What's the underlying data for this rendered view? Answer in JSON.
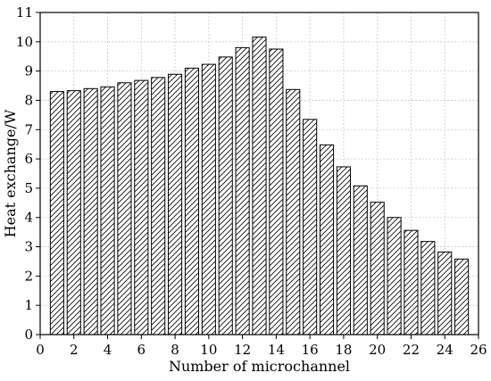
{
  "chart_data": {
    "type": "bar",
    "title": "",
    "xlabel": "Number of microchannel",
    "ylabel": "Heat exchange/W",
    "xlim": [
      0,
      26
    ],
    "ylim": [
      0,
      11
    ],
    "x_ticks": [
      "0",
      "2",
      "4",
      "6",
      "8",
      "10",
      "12",
      "14",
      "16",
      "18",
      "20",
      "22",
      "24",
      "26"
    ],
    "y_ticks": [
      "0",
      "1",
      "2",
      "3",
      "4",
      "5",
      "6",
      "7",
      "8",
      "9",
      "10",
      "11"
    ],
    "grid": true,
    "bar_pattern": "diagonal-hatch",
    "bar_fill": "#ffffff",
    "bar_stroke": "#000000",
    "grid_color": "#c8c8c8",
    "x": [
      1,
      2,
      3,
      4,
      5,
      6,
      7,
      8,
      9,
      10,
      11,
      12,
      13,
      14,
      15,
      16,
      17,
      18,
      19,
      20,
      21,
      22,
      23,
      24,
      25
    ],
    "values": [
      8.3,
      8.33,
      8.4,
      8.46,
      8.6,
      8.68,
      8.78,
      8.89,
      9.1,
      9.23,
      9.48,
      9.8,
      10.16,
      9.75,
      8.37,
      7.35,
      6.48,
      5.73,
      5.08,
      4.52,
      4.0,
      3.56,
      3.18,
      2.82,
      2.58
    ]
  }
}
